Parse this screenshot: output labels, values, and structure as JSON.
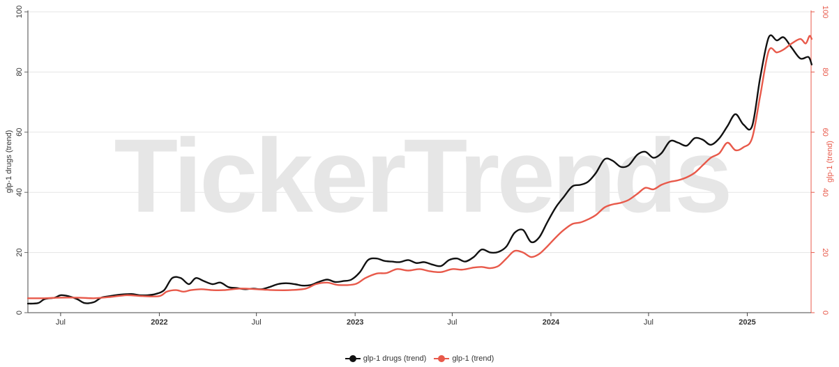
{
  "watermark": "TickerTrends",
  "chart_data": {
    "type": "line",
    "x_type": "date",
    "x_range": [
      "2021-05-01",
      "2025-04-30"
    ],
    "x_ticks": [
      {
        "date": "2021-07-01",
        "label": "Jul",
        "bold": false
      },
      {
        "date": "2022-01-01",
        "label": "2022",
        "bold": true
      },
      {
        "date": "2022-07-01",
        "label": "Jul",
        "bold": false
      },
      {
        "date": "2023-01-01",
        "label": "2023",
        "bold": true
      },
      {
        "date": "2023-07-01",
        "label": "Jul",
        "bold": false
      },
      {
        "date": "2024-01-01",
        "label": "2024",
        "bold": true
      },
      {
        "date": "2024-07-01",
        "label": "Jul",
        "bold": false
      },
      {
        "date": "2025-01-01",
        "label": "2025",
        "bold": true
      }
    ],
    "y_left": {
      "label": "glp-1 drugs (trend)",
      "range": [
        0,
        100
      ],
      "ticks": [
        0,
        20,
        40,
        60,
        80,
        100
      ]
    },
    "y_right": {
      "label": "glp-1 (trend)",
      "range": [
        0,
        100
      ],
      "ticks": [
        0,
        20,
        40,
        60,
        80,
        100
      ]
    },
    "grid": true,
    "legend_position": "bottom-center",
    "series": [
      {
        "name": "glp-1 drugs (trend)",
        "color": "#111111",
        "axis": "left",
        "points": [
          [
            "2021-05-01",
            3.0
          ],
          [
            "2021-05-20",
            3.2
          ],
          [
            "2021-06-01",
            4.5
          ],
          [
            "2021-06-20",
            5.0
          ],
          [
            "2021-07-01",
            5.8
          ],
          [
            "2021-07-15",
            5.5
          ],
          [
            "2021-08-01",
            4.5
          ],
          [
            "2021-08-15",
            3.2
          ],
          [
            "2021-09-01",
            3.5
          ],
          [
            "2021-09-15",
            5.0
          ],
          [
            "2021-10-01",
            5.5
          ],
          [
            "2021-10-20",
            6.0
          ],
          [
            "2021-11-10",
            6.2
          ],
          [
            "2021-11-25",
            5.8
          ],
          [
            "2021-12-10",
            5.8
          ],
          [
            "2021-12-25",
            6.2
          ],
          [
            "2022-01-10",
            7.5
          ],
          [
            "2022-01-25",
            11.5
          ],
          [
            "2022-02-10",
            11.5
          ],
          [
            "2022-02-25",
            9.5
          ],
          [
            "2022-03-10",
            11.5
          ],
          [
            "2022-03-25",
            10.5
          ],
          [
            "2022-04-10",
            9.5
          ],
          [
            "2022-04-25",
            10.0
          ],
          [
            "2022-05-10",
            8.5
          ],
          [
            "2022-05-25",
            8.2
          ],
          [
            "2022-06-10",
            7.8
          ],
          [
            "2022-06-25",
            8.0
          ],
          [
            "2022-07-10",
            7.8
          ],
          [
            "2022-07-25",
            8.5
          ],
          [
            "2022-08-10",
            9.5
          ],
          [
            "2022-08-25",
            9.8
          ],
          [
            "2022-09-10",
            9.5
          ],
          [
            "2022-09-25",
            9.0
          ],
          [
            "2022-10-10",
            9.2
          ],
          [
            "2022-10-25",
            10.2
          ],
          [
            "2022-11-10",
            11.0
          ],
          [
            "2022-11-25",
            10.2
          ],
          [
            "2022-12-10",
            10.5
          ],
          [
            "2022-12-25",
            11.0
          ],
          [
            "2023-01-10",
            13.5
          ],
          [
            "2023-01-25",
            17.5
          ],
          [
            "2023-02-10",
            18.0
          ],
          [
            "2023-02-25",
            17.2
          ],
          [
            "2023-03-10",
            17.0
          ],
          [
            "2023-03-25",
            16.8
          ],
          [
            "2023-04-10",
            17.5
          ],
          [
            "2023-04-25",
            16.5
          ],
          [
            "2023-05-10",
            16.8
          ],
          [
            "2023-05-25",
            16.0
          ],
          [
            "2023-06-10",
            15.5
          ],
          [
            "2023-06-25",
            17.5
          ],
          [
            "2023-07-10",
            18.0
          ],
          [
            "2023-07-25",
            17.0
          ],
          [
            "2023-08-10",
            18.5
          ],
          [
            "2023-08-25",
            21.0
          ],
          [
            "2023-09-10",
            20.0
          ],
          [
            "2023-09-25",
            20.2
          ],
          [
            "2023-10-10",
            22.0
          ],
          [
            "2023-10-25",
            26.5
          ],
          [
            "2023-11-10",
            27.5
          ],
          [
            "2023-11-25",
            23.5
          ],
          [
            "2023-12-10",
            25.0
          ],
          [
            "2023-12-25",
            30.0
          ],
          [
            "2024-01-10",
            35.0
          ],
          [
            "2024-01-25",
            38.5
          ],
          [
            "2024-02-10",
            42.0
          ],
          [
            "2024-02-25",
            42.5
          ],
          [
            "2024-03-10",
            43.5
          ],
          [
            "2024-03-25",
            46.5
          ],
          [
            "2024-04-10",
            51.0
          ],
          [
            "2024-04-25",
            50.5
          ],
          [
            "2024-05-10",
            48.5
          ],
          [
            "2024-05-25",
            49.0
          ],
          [
            "2024-06-10",
            52.5
          ],
          [
            "2024-06-25",
            53.5
          ],
          [
            "2024-07-10",
            51.5
          ],
          [
            "2024-07-25",
            53.0
          ],
          [
            "2024-08-10",
            57.0
          ],
          [
            "2024-08-25",
            56.5
          ],
          [
            "2024-09-10",
            55.5
          ],
          [
            "2024-09-25",
            58.0
          ],
          [
            "2024-10-10",
            57.5
          ],
          [
            "2024-10-25",
            55.8
          ],
          [
            "2024-11-10",
            58.0
          ],
          [
            "2024-11-25",
            62.0
          ],
          [
            "2024-12-10",
            66.0
          ],
          [
            "2024-12-25",
            62.5
          ],
          [
            "2025-01-10",
            62.0
          ],
          [
            "2025-01-25",
            78.0
          ],
          [
            "2025-02-10",
            91.5
          ],
          [
            "2025-02-25",
            90.5
          ],
          [
            "2025-03-10",
            91.5
          ],
          [
            "2025-03-25",
            88.0
          ],
          [
            "2025-04-10",
            84.5
          ],
          [
            "2025-04-25",
            85.0
          ],
          [
            "2025-05-01",
            82.5
          ]
        ]
      },
      {
        "name": "glp-1 (trend)",
        "color": "#e8594a",
        "axis": "right",
        "points": [
          [
            "2021-05-01",
            4.8
          ],
          [
            "2021-06-01",
            4.8
          ],
          [
            "2021-07-01",
            5.0
          ],
          [
            "2021-08-01",
            5.0
          ],
          [
            "2021-09-01",
            4.8
          ],
          [
            "2021-10-01",
            5.2
          ],
          [
            "2021-11-01",
            5.8
          ],
          [
            "2021-12-01",
            5.5
          ],
          [
            "2022-01-01",
            5.5
          ],
          [
            "2022-01-15",
            7.0
          ],
          [
            "2022-02-01",
            7.5
          ],
          [
            "2022-02-15",
            7.0
          ],
          [
            "2022-03-01",
            7.5
          ],
          [
            "2022-03-20",
            7.8
          ],
          [
            "2022-04-10",
            7.5
          ],
          [
            "2022-05-01",
            7.5
          ],
          [
            "2022-06-01",
            8.0
          ],
          [
            "2022-07-01",
            7.8
          ],
          [
            "2022-08-01",
            7.5
          ],
          [
            "2022-09-01",
            7.5
          ],
          [
            "2022-10-01",
            8.0
          ],
          [
            "2022-10-20",
            9.5
          ],
          [
            "2022-11-10",
            10.0
          ],
          [
            "2022-12-01",
            9.2
          ],
          [
            "2023-01-01",
            9.5
          ],
          [
            "2023-01-20",
            11.5
          ],
          [
            "2023-02-10",
            13.0
          ],
          [
            "2023-03-01",
            13.2
          ],
          [
            "2023-03-20",
            14.5
          ],
          [
            "2023-04-10",
            14.0
          ],
          [
            "2023-05-01",
            14.5
          ],
          [
            "2023-05-20",
            13.8
          ],
          [
            "2023-06-10",
            13.5
          ],
          [
            "2023-07-01",
            14.5
          ],
          [
            "2023-07-20",
            14.3
          ],
          [
            "2023-08-10",
            15.0
          ],
          [
            "2023-08-25",
            15.2
          ],
          [
            "2023-09-10",
            14.8
          ],
          [
            "2023-09-25",
            15.5
          ],
          [
            "2023-10-10",
            18.0
          ],
          [
            "2023-10-25",
            20.5
          ],
          [
            "2023-11-10",
            20.0
          ],
          [
            "2023-11-25",
            18.5
          ],
          [
            "2023-12-10",
            19.5
          ],
          [
            "2023-12-25",
            22.0
          ],
          [
            "2024-01-10",
            25.0
          ],
          [
            "2024-01-25",
            27.5
          ],
          [
            "2024-02-10",
            29.5
          ],
          [
            "2024-02-25",
            30.0
          ],
          [
            "2024-03-10",
            31.0
          ],
          [
            "2024-03-25",
            32.5
          ],
          [
            "2024-04-10",
            35.0
          ],
          [
            "2024-04-25",
            36.0
          ],
          [
            "2024-05-10",
            36.5
          ],
          [
            "2024-05-25",
            37.5
          ],
          [
            "2024-06-10",
            39.5
          ],
          [
            "2024-06-25",
            41.5
          ],
          [
            "2024-07-10",
            41.0
          ],
          [
            "2024-07-25",
            42.5
          ],
          [
            "2024-08-10",
            43.5
          ],
          [
            "2024-08-25",
            44.0
          ],
          [
            "2024-09-10",
            45.0
          ],
          [
            "2024-09-25",
            46.5
          ],
          [
            "2024-10-10",
            49.0
          ],
          [
            "2024-10-25",
            51.5
          ],
          [
            "2024-11-10",
            53.0
          ],
          [
            "2024-11-25",
            56.5
          ],
          [
            "2024-12-10",
            54.0
          ],
          [
            "2024-12-25",
            55.0
          ],
          [
            "2025-01-10",
            58.0
          ],
          [
            "2025-01-25",
            72.0
          ],
          [
            "2025-02-10",
            87.0
          ],
          [
            "2025-02-25",
            86.5
          ],
          [
            "2025-03-10",
            87.5
          ],
          [
            "2025-03-25",
            89.5
          ],
          [
            "2025-04-10",
            91.0
          ],
          [
            "2025-04-20",
            89.5
          ],
          [
            "2025-04-27",
            92.0
          ],
          [
            "2025-05-01",
            91.0
          ]
        ]
      }
    ]
  }
}
